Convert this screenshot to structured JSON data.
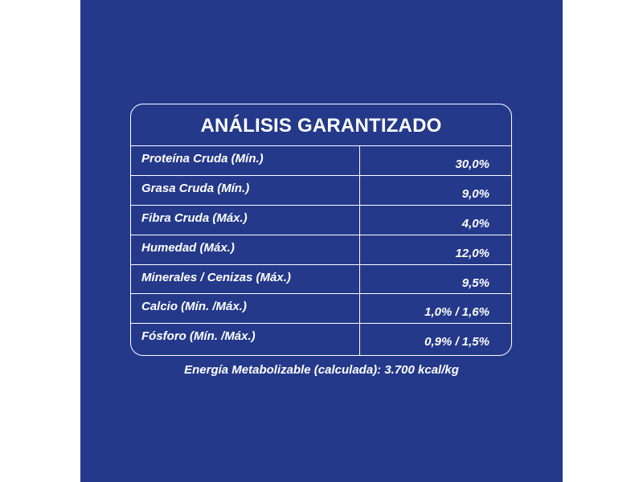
{
  "title": "ANÁLISIS GARANTIZADO",
  "rows": [
    {
      "label": "Proteína Cruda (Mín.)",
      "value": "30,0%"
    },
    {
      "label": "Grasa Cruda (Mín.)",
      "value": "9,0%"
    },
    {
      "label": "Fibra Cruda (Máx.)",
      "value": "4,0%"
    },
    {
      "label": "Humedad (Máx.)",
      "value": "12,0%"
    },
    {
      "label": "Minerales / Cenizas (Máx.)",
      "value": "9,5%"
    },
    {
      "label": "Calcio (Mín. /Máx.)",
      "value": "1,0% / 1,6%"
    },
    {
      "label": "Fósforo (Mín. /Máx.)",
      "value": "0,9% / 1,5%"
    }
  ],
  "footer": "Energía Metabolizable (calculada): 3.700 kcal/kg",
  "colors": {
    "background": "#25398a",
    "text": "#ffffff"
  }
}
